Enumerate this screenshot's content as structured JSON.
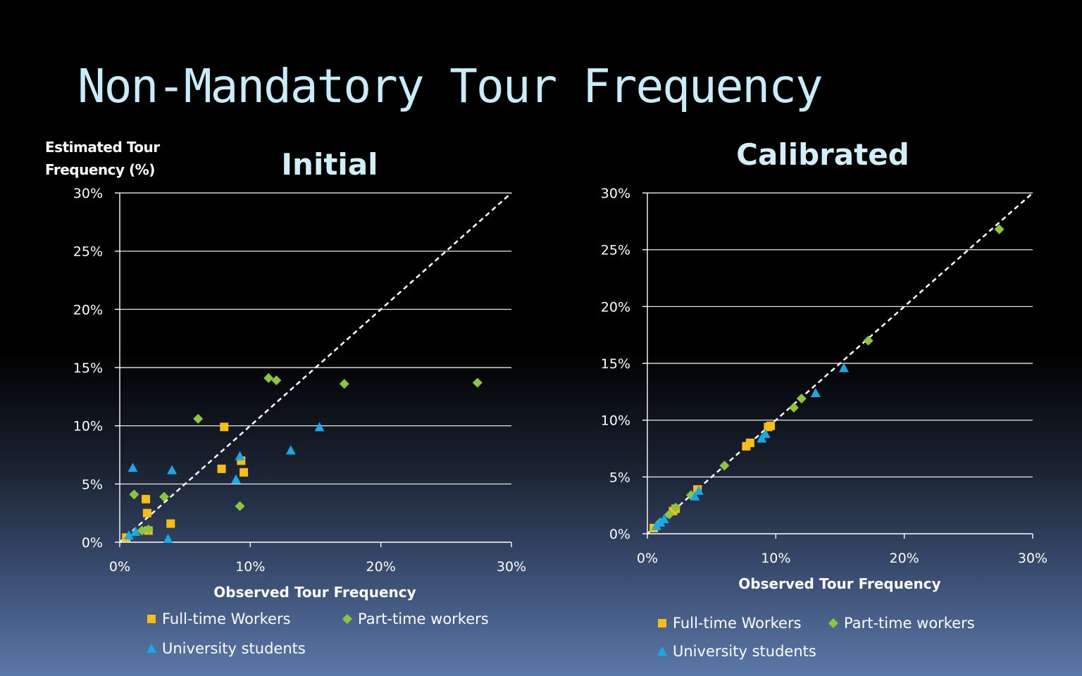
{
  "slide": {
    "title": "Non-Mandatory Tour Frequency"
  },
  "colors": {
    "series": [
      "#f7be16",
      "#8cc63f",
      "#1aa9e6"
    ],
    "grid": "#ffffff",
    "diagonal": "#ffffff",
    "text": "#ffffff",
    "title": "#d2eef9"
  },
  "legend": [
    {
      "label": "Full-time Workers",
      "marker": "square"
    },
    {
      "label": "Part-time workers",
      "marker": "diamond"
    },
    {
      "label": "University students",
      "marker": "triangle"
    }
  ],
  "chart_data": [
    {
      "type": "scatter",
      "title": "Initial",
      "ylabel_lines": [
        "Estimated Tour",
        "Frequency (%)"
      ],
      "xlabel": "Observed Tour Frequency",
      "xlim": [
        0,
        30
      ],
      "ylim": [
        0,
        30
      ],
      "xticks": [
        "0%",
        "10%",
        "20%",
        "30%"
      ],
      "yticks": [
        "0%",
        "5%",
        "10%",
        "15%",
        "20%",
        "25%",
        "30%"
      ],
      "grid": "horizontal",
      "reference_line": "y = x (dashed)",
      "legend_position": "bottom",
      "series": [
        {
          "name": "Full-time Workers",
          "points": [
            [
              0.5,
              0.4
            ],
            [
              2.0,
              3.7
            ],
            [
              2.1,
              2.5
            ],
            [
              2.2,
              1.0
            ],
            [
              3.9,
              1.6
            ],
            [
              7.8,
              6.3
            ],
            [
              8.0,
              9.9
            ],
            [
              9.3,
              7.0
            ],
            [
              9.5,
              6.0
            ]
          ]
        },
        {
          "name": "Part-time workers",
          "points": [
            [
              1.1,
              4.1
            ],
            [
              1.7,
              1.0
            ],
            [
              2.2,
              1.1
            ],
            [
              3.4,
              3.9
            ],
            [
              6.0,
              10.6
            ],
            [
              9.2,
              3.1
            ],
            [
              11.4,
              14.1
            ],
            [
              12.0,
              13.9
            ],
            [
              17.2,
              13.6
            ],
            [
              27.4,
              13.7
            ]
          ]
        },
        {
          "name": "University students",
          "points": [
            [
              0.7,
              0.6
            ],
            [
              1.0,
              6.4
            ],
            [
              1.2,
              0.9
            ],
            [
              3.7,
              0.3
            ],
            [
              4.0,
              6.2
            ],
            [
              8.9,
              5.4
            ],
            [
              9.2,
              7.4
            ],
            [
              13.1,
              7.9
            ],
            [
              15.3,
              9.9
            ]
          ]
        }
      ]
    },
    {
      "type": "scatter",
      "title": "Calibrated",
      "xlabel": "Observed Tour Frequency",
      "xlim": [
        0,
        30
      ],
      "ylim": [
        0,
        30
      ],
      "xticks": [
        "0%",
        "10%",
        "20%",
        "30%"
      ],
      "yticks": [
        "0%",
        "5%",
        "10%",
        "15%",
        "20%",
        "25%",
        "30%"
      ],
      "grid": "horizontal",
      "reference_line": "y = x (dashed)",
      "legend_position": "bottom",
      "series": [
        {
          "name": "Full-time Workers",
          "points": [
            [
              0.5,
              0.5
            ],
            [
              2.0,
              2.0
            ],
            [
              2.2,
              2.2
            ],
            [
              3.9,
              3.9
            ],
            [
              7.7,
              7.7
            ],
            [
              8.0,
              8.0
            ],
            [
              9.4,
              9.4
            ],
            [
              9.6,
              9.5
            ]
          ]
        },
        {
          "name": "Part-time workers",
          "points": [
            [
              1.0,
              1.0
            ],
            [
              1.7,
              1.7
            ],
            [
              2.2,
              2.3
            ],
            [
              3.4,
              3.4
            ],
            [
              6.0,
              6.0
            ],
            [
              11.4,
              11.1
            ],
            [
              12.0,
              11.9
            ],
            [
              17.2,
              17.0
            ],
            [
              27.4,
              26.8
            ]
          ]
        },
        {
          "name": "University students",
          "points": [
            [
              0.7,
              0.7
            ],
            [
              1.0,
              1.0
            ],
            [
              1.3,
              1.3
            ],
            [
              3.7,
              3.3
            ],
            [
              4.0,
              3.8
            ],
            [
              8.9,
              8.4
            ],
            [
              9.2,
              8.8
            ],
            [
              13.1,
              12.4
            ],
            [
              15.3,
              14.6
            ]
          ]
        }
      ]
    }
  ]
}
